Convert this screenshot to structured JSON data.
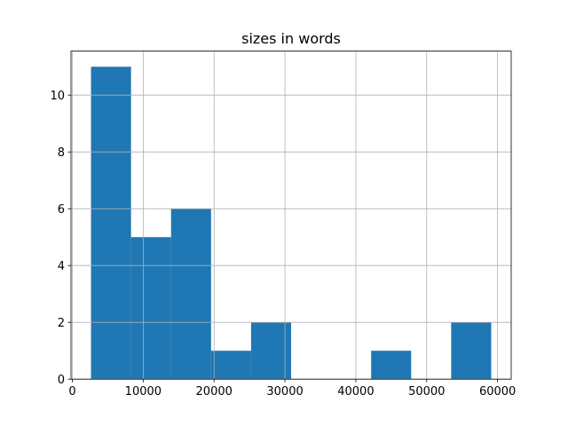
{
  "chart_data": {
    "type": "histogram",
    "title": "sizes in words",
    "bins": [
      2635,
      8282,
      13928,
      19575,
      25221,
      30868,
      36514,
      42161,
      47807,
      53454,
      59100
    ],
    "values": [
      11,
      5,
      6,
      1,
      2,
      0,
      0,
      1,
      0,
      2
    ],
    "color": "#1f77b4",
    "xlim": [
      -188,
      61923
    ],
    "xticks": [
      0,
      10000,
      20000,
      30000,
      40000,
      50000,
      60000
    ],
    "ylim": [
      0,
      11.55
    ],
    "yticks": [
      0,
      2,
      4,
      6,
      8,
      10
    ],
    "grid": true
  }
}
